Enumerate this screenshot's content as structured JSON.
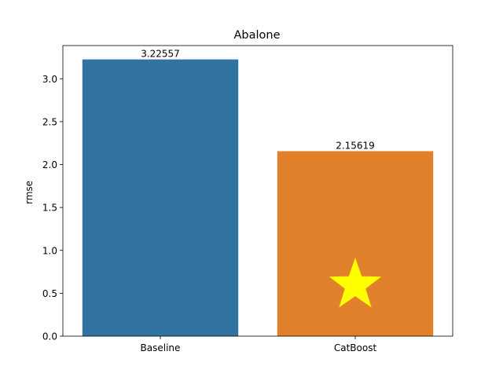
{
  "chart_data": {
    "type": "bar",
    "title": "Abalone",
    "xlabel": "",
    "ylabel": "rmse",
    "categories": [
      "Baseline",
      "CatBoost"
    ],
    "values": [
      3.22557,
      2.15619
    ],
    "value_labels": [
      "3.22557",
      "2.15619"
    ],
    "bar_colors": [
      "#3274a1",
      "#e1812c"
    ],
    "ylim": [
      0,
      3.387
    ],
    "yticks": [
      0.0,
      0.5,
      1.0,
      1.5,
      2.0,
      2.5,
      3.0
    ],
    "ytick_labels": [
      "0.0",
      "0.5",
      "1.0",
      "1.5",
      "2.0",
      "2.5",
      "3.0"
    ],
    "grid": false,
    "best_marker": {
      "category": "CatBoost",
      "y": 0.53,
      "shape": "star",
      "color": "#ffff00"
    }
  }
}
